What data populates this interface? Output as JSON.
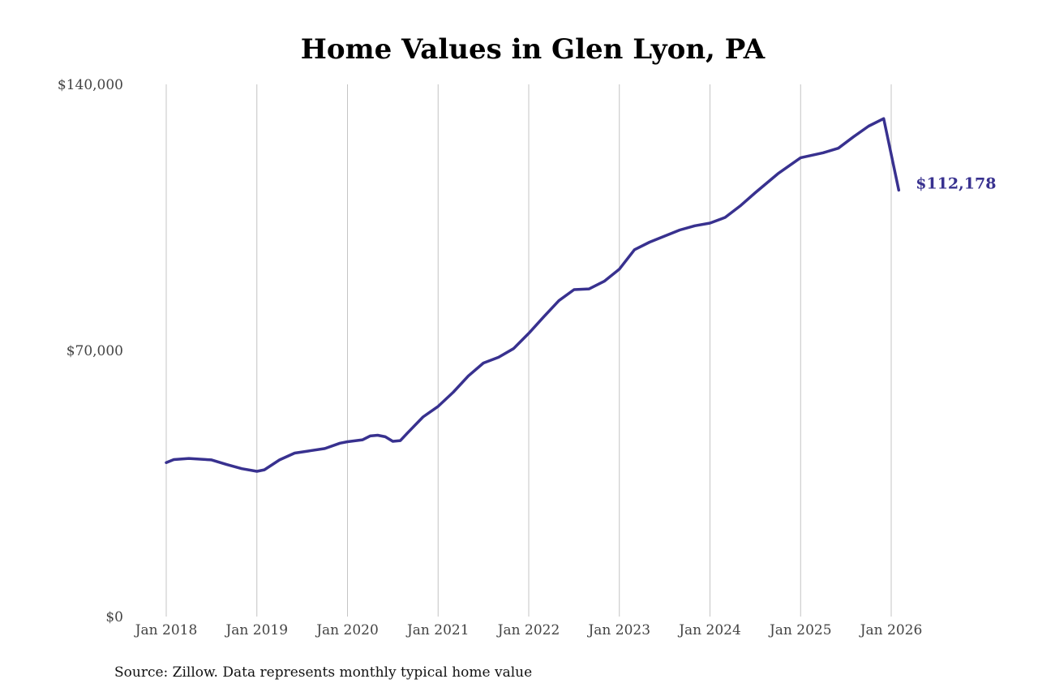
{
  "colors": {
    "series": "#38318f",
    "grid": "#c4c4c4",
    "text": "#444444"
  },
  "chart_data": {
    "type": "line",
    "title": "Home Values in Glen Lyon, PA",
    "xlabel": "",
    "ylabel": "",
    "ylim": [
      0,
      140000
    ],
    "y_ticks": [
      {
        "value": 0,
        "label": "$0"
      },
      {
        "value": 70000,
        "label": "$70,000"
      },
      {
        "value": 140000,
        "label": "$140,000"
      }
    ],
    "x_ticks": [
      {
        "value": 2018,
        "label": "Jan 2018"
      },
      {
        "value": 2019,
        "label": "Jan 2019"
      },
      {
        "value": 2020,
        "label": "Jan 2020"
      },
      {
        "value": 2021,
        "label": "Jan 2021"
      },
      {
        "value": 2022,
        "label": "Jan 2022"
      },
      {
        "value": 2023,
        "label": "Jan 2023"
      },
      {
        "value": 2024,
        "label": "Jan 2024"
      },
      {
        "value": 2025,
        "label": "Jan 2025"
      },
      {
        "value": 2026,
        "label": "Jan 2026"
      }
    ],
    "grid": "vertical",
    "legend": "none",
    "series": [
      {
        "x": [
          2018.0,
          2018.083,
          2018.25,
          2018.5,
          2018.667,
          2018.833,
          2019.0,
          2019.083,
          2019.25,
          2019.417,
          2019.583,
          2019.75,
          2019.917,
          2020.0,
          2020.167,
          2020.25,
          2020.333,
          2020.417,
          2020.5,
          2020.583,
          2020.667,
          2020.833,
          2021.0,
          2021.167,
          2021.333,
          2021.5,
          2021.667,
          2021.833,
          2022.0,
          2022.167,
          2022.333,
          2022.5,
          2022.667,
          2022.833,
          2023.0,
          2023.167,
          2023.333,
          2023.5,
          2023.667,
          2023.833,
          2024.0,
          2024.167,
          2024.333,
          2024.5,
          2024.75,
          2025.0,
          2025.25,
          2025.417,
          2025.583,
          2025.75,
          2025.917,
          2026.083
        ],
        "y": [
          40500,
          41300,
          41600,
          41200,
          40000,
          38900,
          38200,
          38600,
          41200,
          43000,
          43600,
          44200,
          45600,
          46000,
          46500,
          47500,
          47700,
          47300,
          46100,
          46300,
          48400,
          52500,
          55300,
          59000,
          63300,
          66700,
          68200,
          70500,
          74500,
          78900,
          83100,
          86000,
          86200,
          88200,
          91400,
          96500,
          98500,
          100100,
          101700,
          102800,
          103500,
          105000,
          108000,
          111500,
          116500,
          120700,
          122000,
          123200,
          126200,
          129000,
          131000,
          112178
        ],
        "end_label": "$112,178"
      }
    ],
    "source": "Source: Zillow. Data represents monthly typical home value"
  }
}
